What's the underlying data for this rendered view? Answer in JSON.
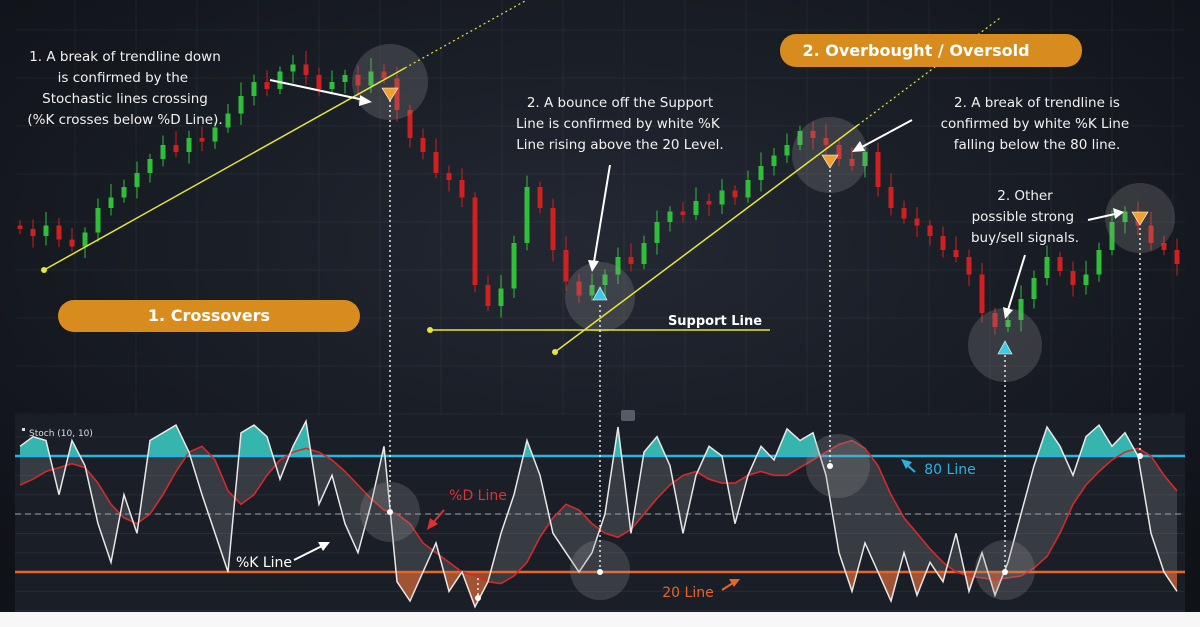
{
  "colors": {
    "up": "#2fbf3a",
    "down": "#d0201f",
    "accent": "#d98c1e",
    "k_line": "#e8e8e8",
    "d_line": "#d32a2a",
    "line80": "#2bb3e0",
    "line20": "#e8652a",
    "trend": "#e6e63a",
    "fill_overbought": "#35b5ad"
  },
  "headers": {
    "crossovers": "1. Crossovers",
    "overbought": "2. Overbought / Oversold"
  },
  "annotations": {
    "break_down": [
      "1. A break of trendline down",
      "is confirmed by the",
      "Stochastic lines crossing",
      "(%K crosses below %D Line)."
    ],
    "bounce": [
      "2. A bounce off the Support",
      "Line is confirmed by white %K",
      "Line rising above the 20 Level."
    ],
    "break_80": [
      "2. A break of trendline is",
      "confirmed by white %K Line",
      "falling below the 80 line."
    ],
    "other": [
      "2. Other",
      "possible strong",
      "buy/sell signals."
    ],
    "support_line": "Support Line",
    "d_line": "%D Line",
    "k_line": "%K Line",
    "line80": "80 Line",
    "line20": "20 Line"
  },
  "indicator_label": "Stoch (10, 10)",
  "chart_data": {
    "type": "candlestick + oscillator",
    "price_close": [
      46,
      44,
      47,
      43,
      41,
      45,
      52,
      55,
      58,
      62,
      66,
      70,
      68,
      72,
      71,
      75,
      79,
      84,
      88,
      86,
      91,
      93,
      90,
      86,
      88,
      90,
      87,
      91,
      89,
      80,
      72,
      68,
      62,
      60,
      55,
      30,
      24,
      29,
      42,
      58,
      52,
      40,
      31,
      27,
      30,
      33,
      38,
      36,
      42,
      48,
      51,
      50,
      54,
      53,
      57,
      55,
      60,
      64,
      67,
      70,
      74,
      72,
      70,
      66,
      64,
      68,
      58,
      52,
      49,
      47,
      44,
      40,
      38,
      33,
      22,
      18,
      20,
      26,
      32,
      38,
      34,
      30,
      33,
      40,
      48,
      51,
      47,
      42,
      40,
      36
    ],
    "stoch_k": [
      85,
      90,
      88,
      60,
      88,
      75,
      45,
      25,
      60,
      40,
      88,
      92,
      96,
      82,
      60,
      40,
      20,
      92,
      96,
      90,
      68,
      85,
      98,
      55,
      70,
      45,
      30,
      55,
      85,
      15,
      5,
      20,
      35,
      10,
      20,
      2,
      15,
      40,
      60,
      88,
      70,
      40,
      30,
      20,
      30,
      50,
      95,
      40,
      82,
      90,
      75,
      40,
      70,
      85,
      80,
      45,
      70,
      85,
      78,
      94,
      88,
      92,
      70,
      30,
      10,
      35,
      20,
      5,
      30,
      8,
      25,
      15,
      40,
      10,
      30,
      8,
      25,
      50,
      75,
      95,
      85,
      70,
      90,
      96,
      85,
      92,
      80,
      40,
      20,
      10
    ],
    "stoch_d": [
      65,
      68,
      72,
      74,
      76,
      74,
      66,
      55,
      48,
      45,
      50,
      60,
      72,
      82,
      85,
      78,
      62,
      55,
      60,
      70,
      78,
      82,
      84,
      82,
      78,
      72,
      65,
      58,
      52,
      50,
      45,
      35,
      30,
      25,
      20,
      18,
      15,
      14,
      18,
      25,
      38,
      48,
      55,
      52,
      45,
      40,
      38,
      42,
      50,
      58,
      65,
      70,
      72,
      68,
      66,
      66,
      70,
      72,
      70,
      70,
      74,
      78,
      82,
      86,
      88,
      84,
      75,
      60,
      48,
      40,
      32,
      25,
      20,
      18,
      17,
      16,
      17,
      18,
      22,
      28,
      40,
      55,
      65,
      72,
      78,
      82,
      84,
      80,
      70,
      62
    ],
    "levels": {
      "overbought": 80,
      "middle": 50,
      "oversold": 20
    },
    "stoch_range": [
      0,
      100
    ]
  }
}
